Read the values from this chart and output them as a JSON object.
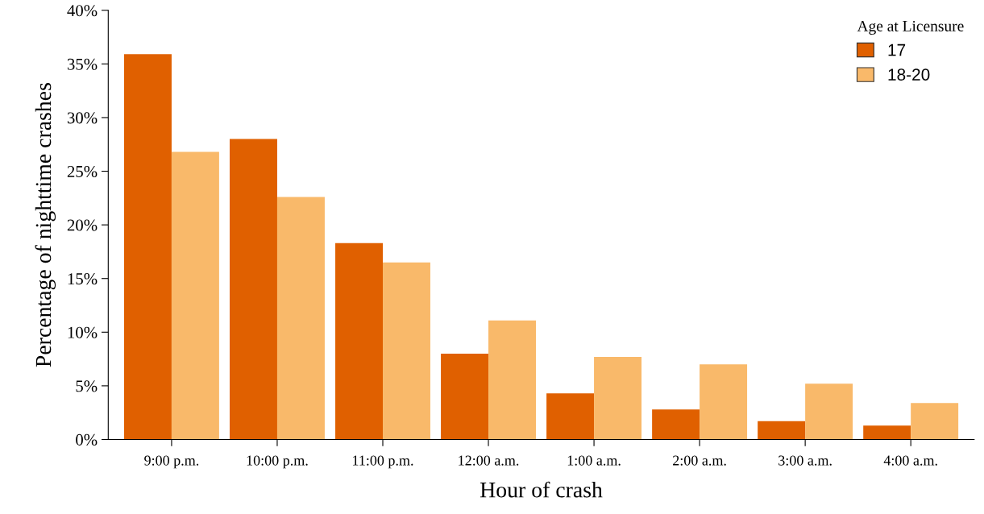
{
  "chart_data": {
    "type": "bar",
    "xlabel": "Hour of crash",
    "ylabel": "Percentage of nighttime crashes",
    "legend_title": "Age at Licensure",
    "categories": [
      "9:00 p.m.",
      "10:00 p.m.",
      "11:00 p.m.",
      "12:00 a.m.",
      "1:00 a.m.",
      "2:00 a.m.",
      "3:00 a.m.",
      "4:00 a.m."
    ],
    "series": [
      {
        "name": "17",
        "color": "#e06000",
        "values": [
          35.9,
          28.0,
          18.3,
          8.0,
          4.3,
          2.8,
          1.7,
          1.3
        ]
      },
      {
        "name": "18-20",
        "color": "#f9b96a",
        "values": [
          26.8,
          22.6,
          16.5,
          11.1,
          7.7,
          7.0,
          5.2,
          3.4
        ]
      }
    ],
    "ylim": [
      0,
      40
    ],
    "yticks": [
      {
        "value": 0,
        "label": "0%"
      },
      {
        "value": 5,
        "label": "5%"
      },
      {
        "value": 10,
        "label": "10%"
      },
      {
        "value": 15,
        "label": "15%"
      },
      {
        "value": 20,
        "label": "20%"
      },
      {
        "value": 25,
        "label": "25%"
      },
      {
        "value": 30,
        "label": "30%"
      },
      {
        "value": 35,
        "label": "35%"
      },
      {
        "value": 40,
        "label": "40%"
      }
    ],
    "grid": false,
    "legend": "top right"
  }
}
